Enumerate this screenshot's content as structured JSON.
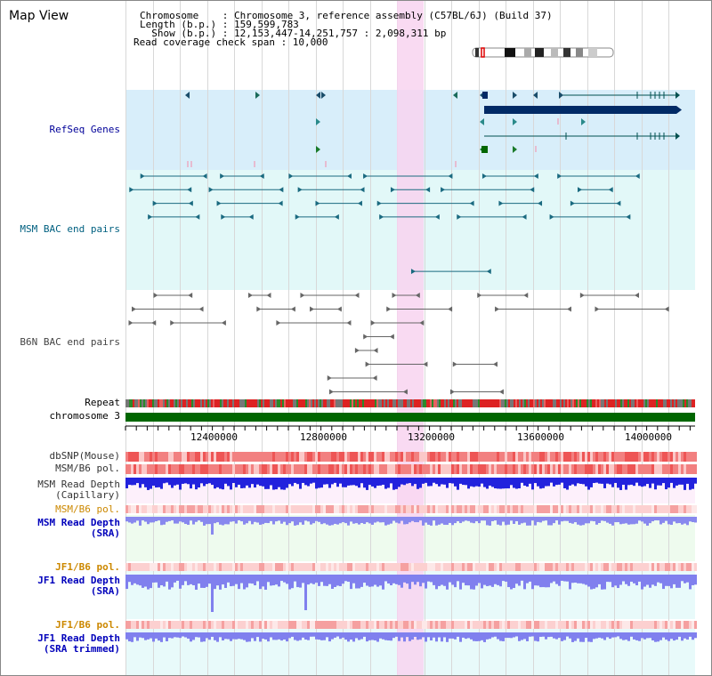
{
  "header": {
    "title": "Map View",
    "info_lines": [
      "Chromosome    : Chromosome 3, reference assembly (C57BL/6J) (Build 37)",
      "Length (b.p.) : 159,599,783",
      "  Show (b.p.) : 12,153,447-14,251,757 : 2,098,311 bp",
      "Read coverage check span : 10,000"
    ]
  },
  "tracks": {
    "refseq": "RefSeq Genes",
    "msm_bac": "MSM BAC end pairs",
    "b6n_bac": "B6N BAC end pairs",
    "repeat": "Repeat",
    "chromosome": "chromosome 3",
    "dbsnp": "dbSNP(Mouse)",
    "msm_b6_pol": "MSM/B6 pol.",
    "msm_depth_cap_1": "MSM Read Depth",
    "msm_depth_cap_2": "(Capillary)",
    "msm_b6_pol2": "MSM/B6 pol.",
    "msm_depth_sra_1": "MSM Read Depth",
    "msm_depth_sra_2": "(SRA)",
    "jf1_b6_pol": "JF1/B6 pol.",
    "jf1_depth_sra_1": "JF1 Read Depth",
    "jf1_depth_sra_2": "(SRA)",
    "jf1_b6_pol2": "JF1/B6 pol.",
    "jf1_depth_trim_1": "JF1 Read Depth",
    "jf1_depth_trim_2": "(SRA trimmed)"
  },
  "axis": {
    "ticks": [
      "12400000",
      "12800000",
      "13200000",
      "13600000",
      "14000000"
    ]
  },
  "colors": {
    "refseq_bg": "#d8eefa",
    "msm_bac_bg": "#e2f8f8",
    "highlight": "#f8d4f0",
    "refseq_label": "#000099",
    "msm_bac_label": "#006080",
    "b6n_label": "#444444",
    "pol_orange": "#cc8800",
    "depth_blue": "#0000bb",
    "chromosome_green": "#006600"
  }
}
